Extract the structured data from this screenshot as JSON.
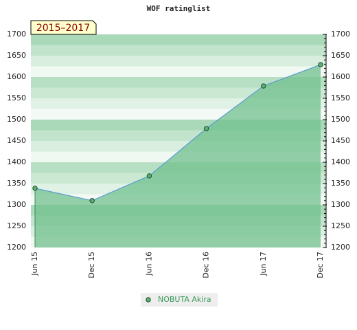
{
  "chart_data": {
    "type": "area",
    "title": "WOF ratinglist",
    "annotation": "2015–2017",
    "categories": [
      "Jun 15",
      "Dec 15",
      "Jun 16",
      "Dec 16",
      "Jun 17",
      "Dec 17"
    ],
    "series": [
      {
        "name": "NOBUTA Akira",
        "color": "#5a9bd4",
        "fill": "#72c08e",
        "marker": "#5cb072",
        "values": [
          1339,
          1310,
          1368,
          1479,
          1579,
          1629
        ]
      }
    ],
    "ylim": [
      1200,
      1700
    ],
    "yticks": [
      1200,
      1250,
      1300,
      1350,
      1400,
      1450,
      1500,
      1550,
      1600,
      1650,
      1700
    ]
  }
}
